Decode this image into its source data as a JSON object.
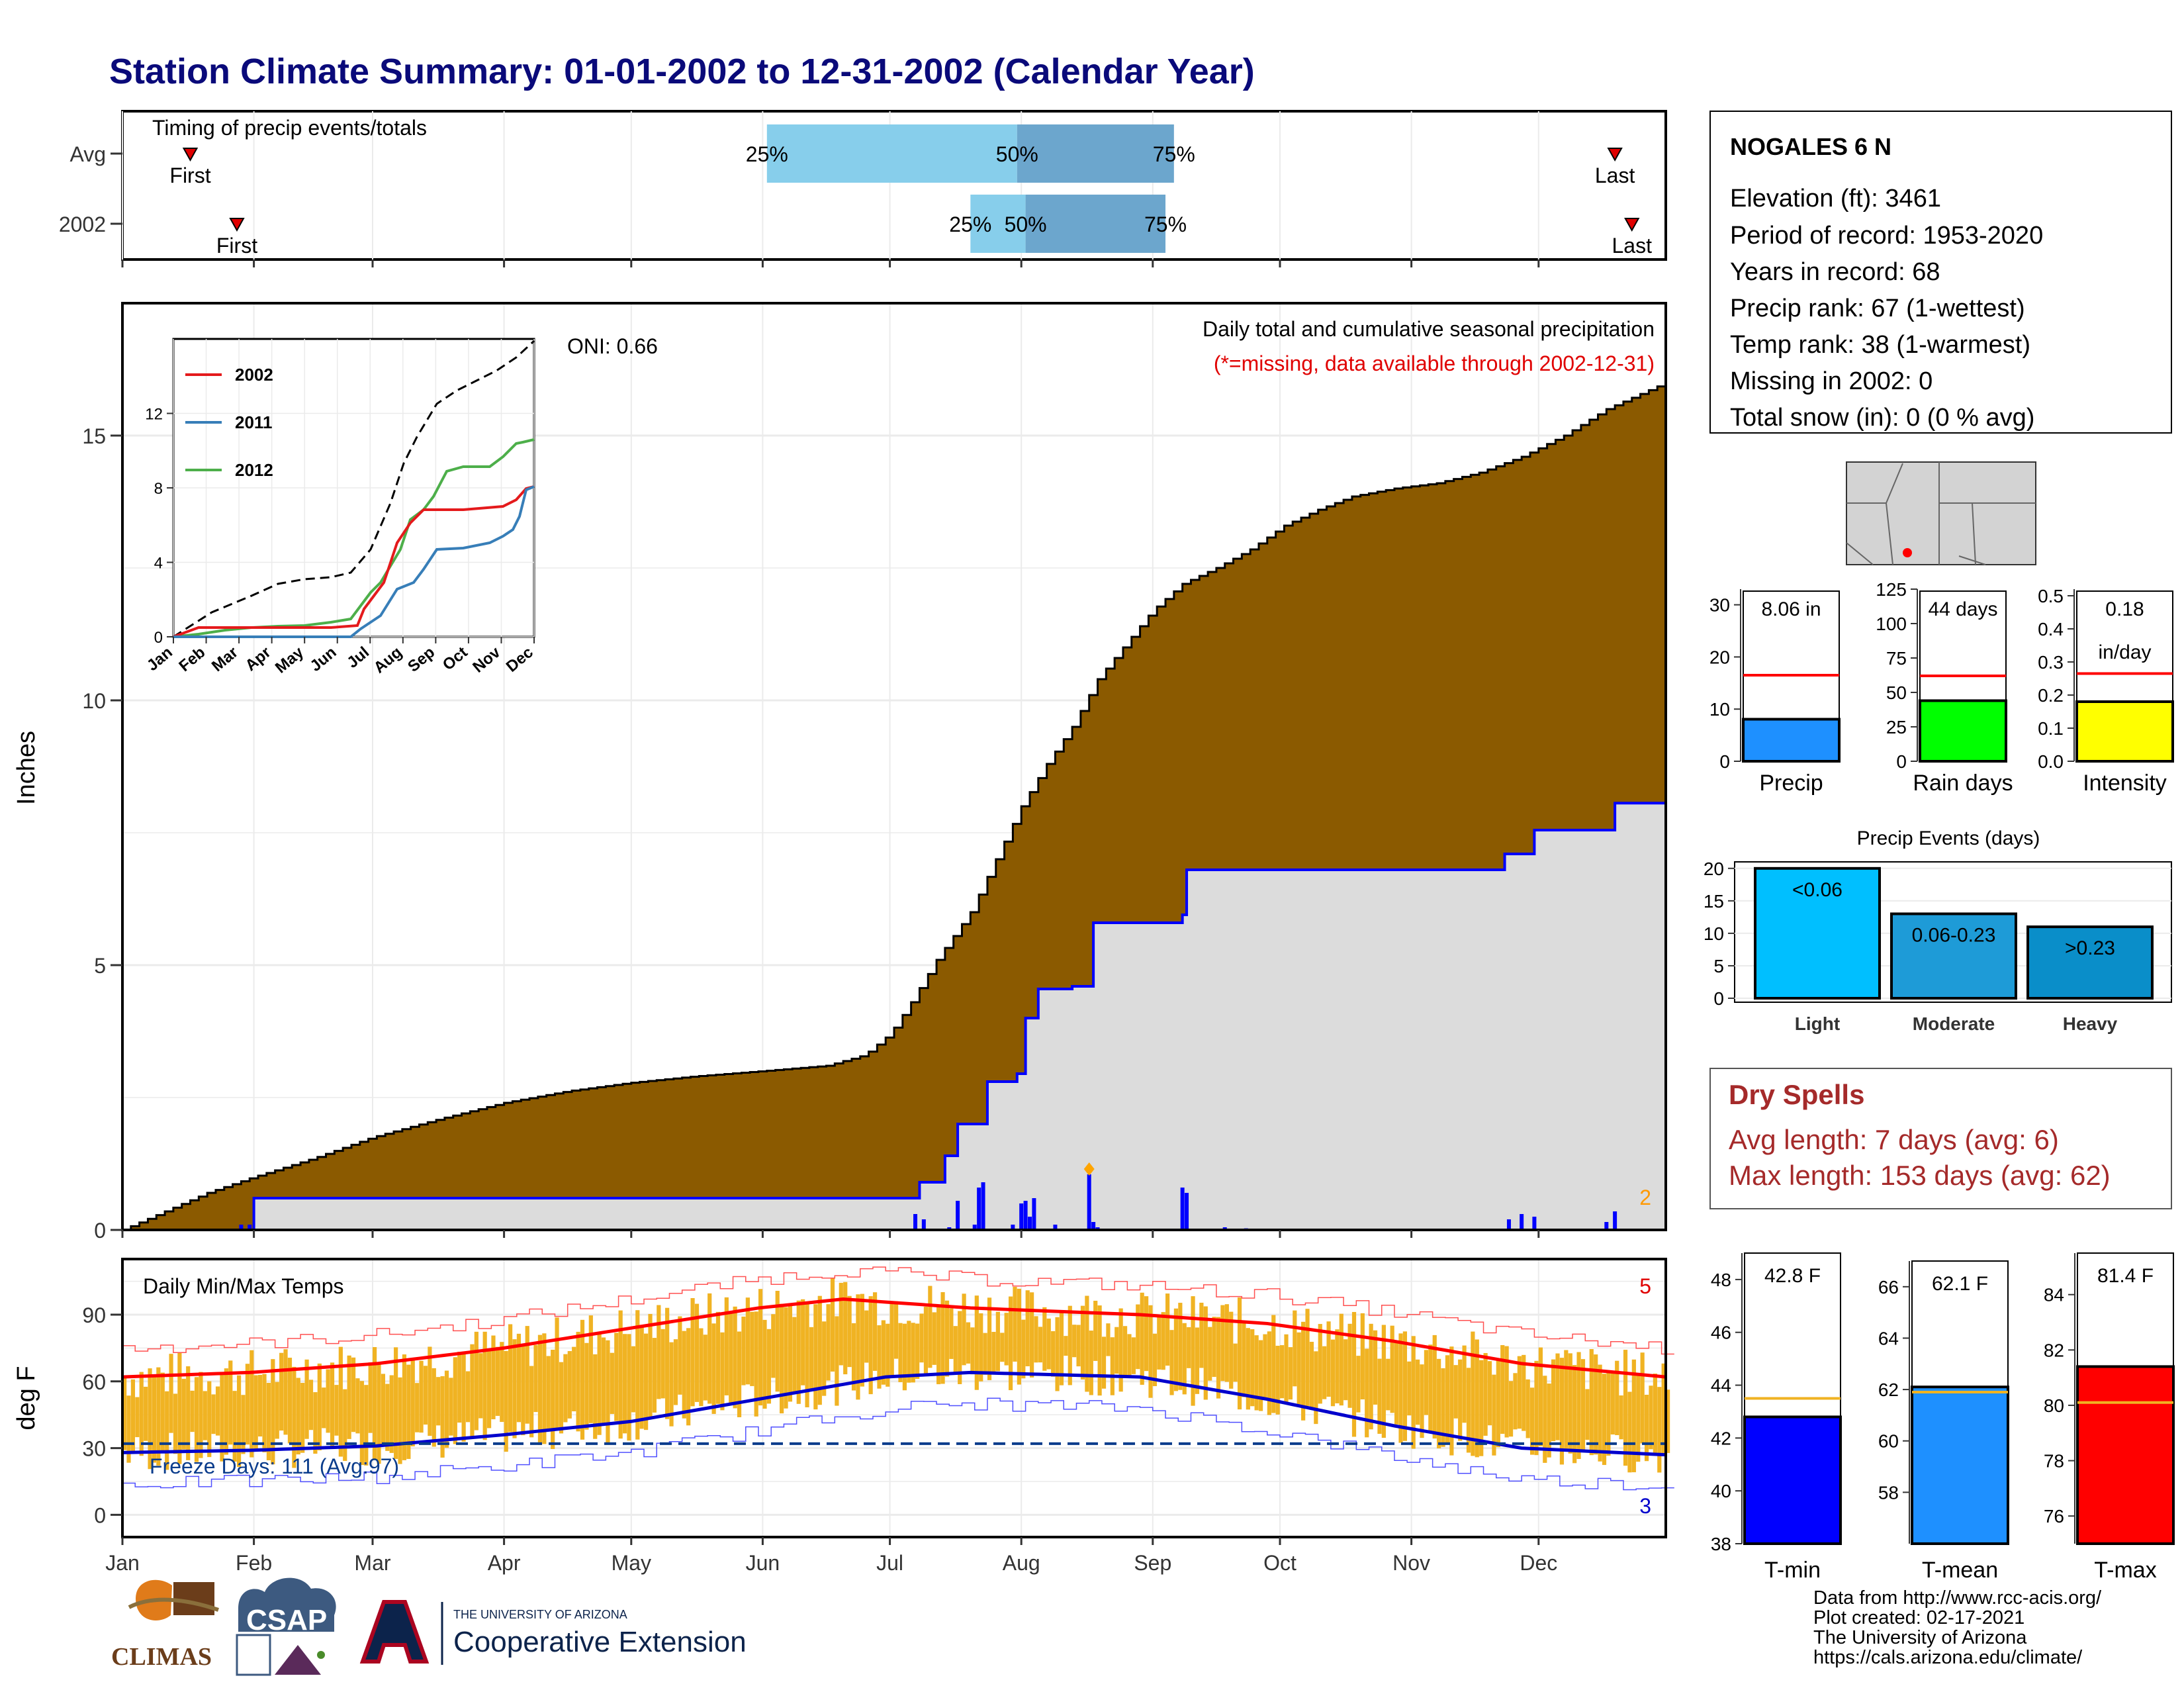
{
  "title": "Station Climate Summary: 01-01-2002 to 12-31-2002 (Calendar Year)",
  "colors": {
    "title": "#0a0a7a",
    "precip_fill": "#8b5a00",
    "observed_fill": "#dcdcdc",
    "observed_line": "#0000ff",
    "temp_bar": "#f0b323",
    "tmax_line": "#ff0000",
    "tmin_line": "#0000cc",
    "dry_spell_text": "#a52a2a",
    "light_event": "#00bfff",
    "moderate_event": "#1e9bd7",
    "heavy_event": "#0a8ec9"
  },
  "timing_panel": {
    "label": "Timing of precip events/totals",
    "rows": [
      {
        "name": "Avg",
        "first_label": "First",
        "last_label": "Last",
        "p25_label": "25%",
        "p50_label": "50%",
        "p75_label": "75%",
        "first_day": 16,
        "last_day": 352,
        "p25_day": 152,
        "p50_day": 211,
        "p75_day": 248
      },
      {
        "name": "2002",
        "first_label": "First",
        "last_label": "Last",
        "p25_label": "25%",
        "p50_label": "50%",
        "p75_label": "75%",
        "first_day": 27,
        "last_day": 356,
        "p25_day": 200,
        "p50_day": 213,
        "p75_day": 246
      }
    ]
  },
  "precip_panel": {
    "ylabel": "Inches",
    "yticks": [
      "0",
      "5",
      "10",
      "15"
    ],
    "subtitle": "Daily total and cumulative seasonal precipitation",
    "missing_note": "(*=missing, data available through 2002-12-31)",
    "oni_label": "ONI: 0.66",
    "corner_count": "2",
    "ylim": [
      0,
      17.5
    ]
  },
  "inset": {
    "yticks": [
      "0",
      "4",
      "8",
      "12"
    ],
    "xticks": [
      "Jan",
      "Feb",
      "Mar",
      "Apr",
      "May",
      "Jun",
      "Jul",
      "Aug",
      "Sep",
      "Oct",
      "Nov",
      "Dec"
    ],
    "legend": [
      {
        "name": "2002",
        "color": "#e41a1c"
      },
      {
        "name": "2011",
        "color": "#377eb8"
      },
      {
        "name": "2012",
        "color": "#4daf4a"
      }
    ]
  },
  "temp_panel": {
    "ylabel": "deg F",
    "label": "Daily Min/Max Temps",
    "freeze_label": "Freeze Days: 111 (Avg:97)",
    "yticks": [
      "0",
      "30",
      "60",
      "90"
    ],
    "hot_count": "5",
    "cold_count": "3",
    "freeze_line": 32,
    "ylim": [
      -10,
      115
    ]
  },
  "months": [
    "Jan",
    "Feb",
    "Mar",
    "Apr",
    "May",
    "Jun",
    "Jul",
    "Aug",
    "Sep",
    "Oct",
    "Nov",
    "Dec"
  ],
  "station": {
    "name": "NOGALES 6 N",
    "lines": [
      "Elevation (ft): 3461",
      "Period of record: 1953-2020",
      "Years in record: 68",
      "Precip rank: 67 (1-wettest)",
      "Temp rank: 38 (1-warmest)",
      "Missing in 2002: 0",
      "Total snow (in): 0 (0 % avg)"
    ]
  },
  "summary_bars": [
    {
      "label": "Precip",
      "value_label": "8.06 in",
      "value": 8.06,
      "avg": 16.5,
      "ymax": 33,
      "ticks": [
        "0",
        "10",
        "20",
        "30"
      ],
      "tick_vals": [
        0,
        10,
        20,
        30
      ],
      "color": "#1e90ff"
    },
    {
      "label": "Rain days",
      "value_label": "44 days",
      "value": 44,
      "avg": 62,
      "ymax": 125,
      "ticks": [
        "0",
        "25",
        "50",
        "75",
        "100",
        "125"
      ],
      "tick_vals": [
        0,
        25,
        50,
        75,
        100,
        125
      ],
      "color": "#00ff00"
    },
    {
      "label": "Intensity",
      "value_label": "0.18",
      "value_label2": "in/day",
      "value": 0.18,
      "avg": 0.265,
      "ymax": 0.52,
      "ticks": [
        "0.0",
        "0.1",
        "0.2",
        "0.3",
        "0.4",
        "0.5"
      ],
      "tick_vals": [
        0,
        0.1,
        0.2,
        0.3,
        0.4,
        0.5
      ],
      "color": "#ffff00"
    }
  ],
  "precip_events": {
    "title": "Precip Events (days)",
    "yticks": [
      "0",
      "5",
      "10",
      "15",
      "20"
    ],
    "bars": [
      {
        "category": "Light",
        "range_label": "<0.06",
        "value": 20,
        "color": "#00bfff"
      },
      {
        "category": "Moderate",
        "range_label": "0.06-0.23",
        "value": 13,
        "color": "#1e9bd7"
      },
      {
        "category": "Heavy",
        "range_label": ">0.23",
        "value": 11,
        "color": "#0a8ec9"
      }
    ]
  },
  "dry_spells": {
    "title": "Dry Spells",
    "avg_line": "Avg length: 7 days (avg: 6)",
    "max_line": "Max length: 153 days (avg: 62)"
  },
  "temp_bars": [
    {
      "label": "T-min",
      "value_label": "42.8 F",
      "value": 42.8,
      "avg": 43.5,
      "ymin": 38,
      "ymax": 49,
      "ticks": [
        "38",
        "40",
        "42",
        "44",
        "46",
        "48"
      ],
      "tick_vals": [
        38,
        40,
        42,
        44,
        46,
        48
      ],
      "color": "#0000ff"
    },
    {
      "label": "T-mean",
      "value_label": "62.1 F",
      "value": 62.1,
      "avg": 61.9,
      "ymin": 56,
      "ymax": 67,
      "ticks": [
        "58",
        "60",
        "62",
        "64",
        "66"
      ],
      "tick_vals": [
        58,
        60,
        62,
        64,
        66
      ],
      "color": "#1e90ff"
    },
    {
      "label": "T-max",
      "value_label": "81.4 F",
      "value": 81.4,
      "avg": 80.1,
      "ymin": 75,
      "ymax": 85.5,
      "ticks": [
        "76",
        "78",
        "80",
        "82",
        "84"
      ],
      "tick_vals": [
        76,
        78,
        80,
        82,
        84
      ],
      "color": "#ff0000"
    }
  ],
  "footer": {
    "lines": [
      "Data from http://www.rcc-acis.org/",
      "Plot created: 02-17-2021",
      "The University of Arizona",
      "https://cals.arizona.edu/climate/"
    ],
    "logo_climas": "CLIMAS",
    "logo_csap": "CSAP",
    "ua_small": "THE UNIVERSITY OF ARIZONA",
    "ua_big": "Cooperative Extension"
  },
  "chart_data": {
    "type": "area",
    "title": "Station Climate Summary: 01-01-2002 to 12-31-2002 (Calendar Year)",
    "ylabel": "Inches",
    "ylim": [
      0,
      17.5
    ],
    "avg_cumulative": {
      "x": [
        0,
        20,
        31,
        45,
        59,
        75,
        90,
        105,
        120,
        135,
        151,
        166,
        175,
        181,
        186,
        192,
        200,
        206,
        212,
        218,
        224,
        230,
        236,
        243,
        250,
        258,
        266,
        274,
        282,
        290,
        300,
        310,
        320,
        330,
        340,
        350,
        364
      ],
      "y": [
        0,
        0.7,
        1.0,
        1.35,
        1.75,
        2.1,
        2.4,
        2.62,
        2.78,
        2.9,
        3.0,
        3.1,
        3.3,
        3.7,
        4.3,
        5.1,
        6.0,
        7.0,
        8.0,
        8.8,
        9.5,
        10.4,
        11.0,
        11.7,
        12.2,
        12.5,
        12.85,
        13.3,
        13.6,
        13.85,
        14.0,
        14.1,
        14.3,
        14.6,
        15.0,
        15.5,
        16.0
      ]
    },
    "observed_cumulative": {
      "x": [
        0,
        29,
        31,
        187,
        188,
        194,
        197,
        204,
        211,
        213,
        216,
        224,
        229,
        250,
        251,
        297,
        326,
        333,
        352,
        364
      ],
      "y": [
        0,
        0,
        0.6,
        0.6,
        0.9,
        1.4,
        2.0,
        2.8,
        2.95,
        4.0,
        4.55,
        4.6,
        5.8,
        5.95,
        6.8,
        6.8,
        7.1,
        7.55,
        8.06,
        8.06
      ]
    },
    "daily_precip": {
      "day": [
        28,
        30,
        187,
        189,
        195,
        197,
        201,
        202,
        203,
        210,
        212,
        213,
        214,
        215,
        220,
        228,
        229,
        230,
        250,
        251,
        260,
        265,
        298,
        327,
        330,
        333,
        350,
        352
      ],
      "value": [
        0.1,
        0.1,
        0.3,
        0.2,
        0.05,
        0.55,
        0.1,
        0.8,
        0.9,
        0.1,
        0.5,
        0.55,
        0.25,
        0.6,
        0.1,
        1.05,
        0.15,
        0.05,
        0.8,
        0.7,
        0.05,
        0.03,
        0.02,
        0.2,
        0.3,
        0.25,
        0.15,
        0.35
      ]
    },
    "temp_series": {
      "tmax_avg": {
        "day": [
          0,
          30,
          60,
          90,
          120,
          150,
          170,
          200,
          240,
          270,
          300,
          330,
          364
        ],
        "value": [
          62,
          64,
          68,
          75,
          84,
          93,
          97,
          93,
          90,
          86,
          78,
          68,
          62
        ]
      },
      "tmin_avg": {
        "day": [
          0,
          30,
          60,
          90,
          120,
          150,
          180,
          200,
          240,
          270,
          300,
          330,
          364
        ],
        "value": [
          28,
          29,
          31,
          36,
          42,
          52,
          62,
          64,
          62,
          52,
          40,
          30,
          27
        ]
      },
      "freeze_threshold": 32
    }
  }
}
